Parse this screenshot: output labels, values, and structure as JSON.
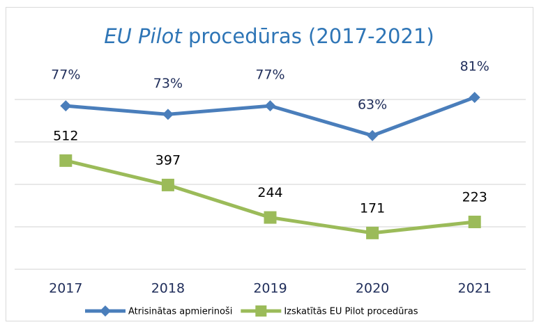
{
  "chart_data": {
    "type": "line",
    "title_emphasis": "EU Pilot",
    "title": "procedūras (2017-2021)",
    "categories": [
      "2017",
      "2018",
      "2019",
      "2020",
      "2021"
    ],
    "series": [
      {
        "name": "Atrisinātas apmierinoši",
        "color": "#4a7ebb",
        "marker": "diamond",
        "axis": "y2",
        "values": [
          77,
          73,
          77,
          63,
          81
        ],
        "value_labels": [
          "77%",
          "73%",
          "77%",
          "63%",
          "81%"
        ]
      },
      {
        "name": "Izskatītās EU Pilot procedūras",
        "color": "#9bbb59",
        "marker": "square",
        "values": [
          512,
          397,
          244,
          171,
          223
        ]
      }
    ],
    "ylim": [
      0,
      1000
    ],
    "yticks": [
      0,
      200,
      400,
      600,
      800
    ],
    "y2lim": [
      0,
      100
    ],
    "grid": true,
    "legend": "bottom"
  }
}
